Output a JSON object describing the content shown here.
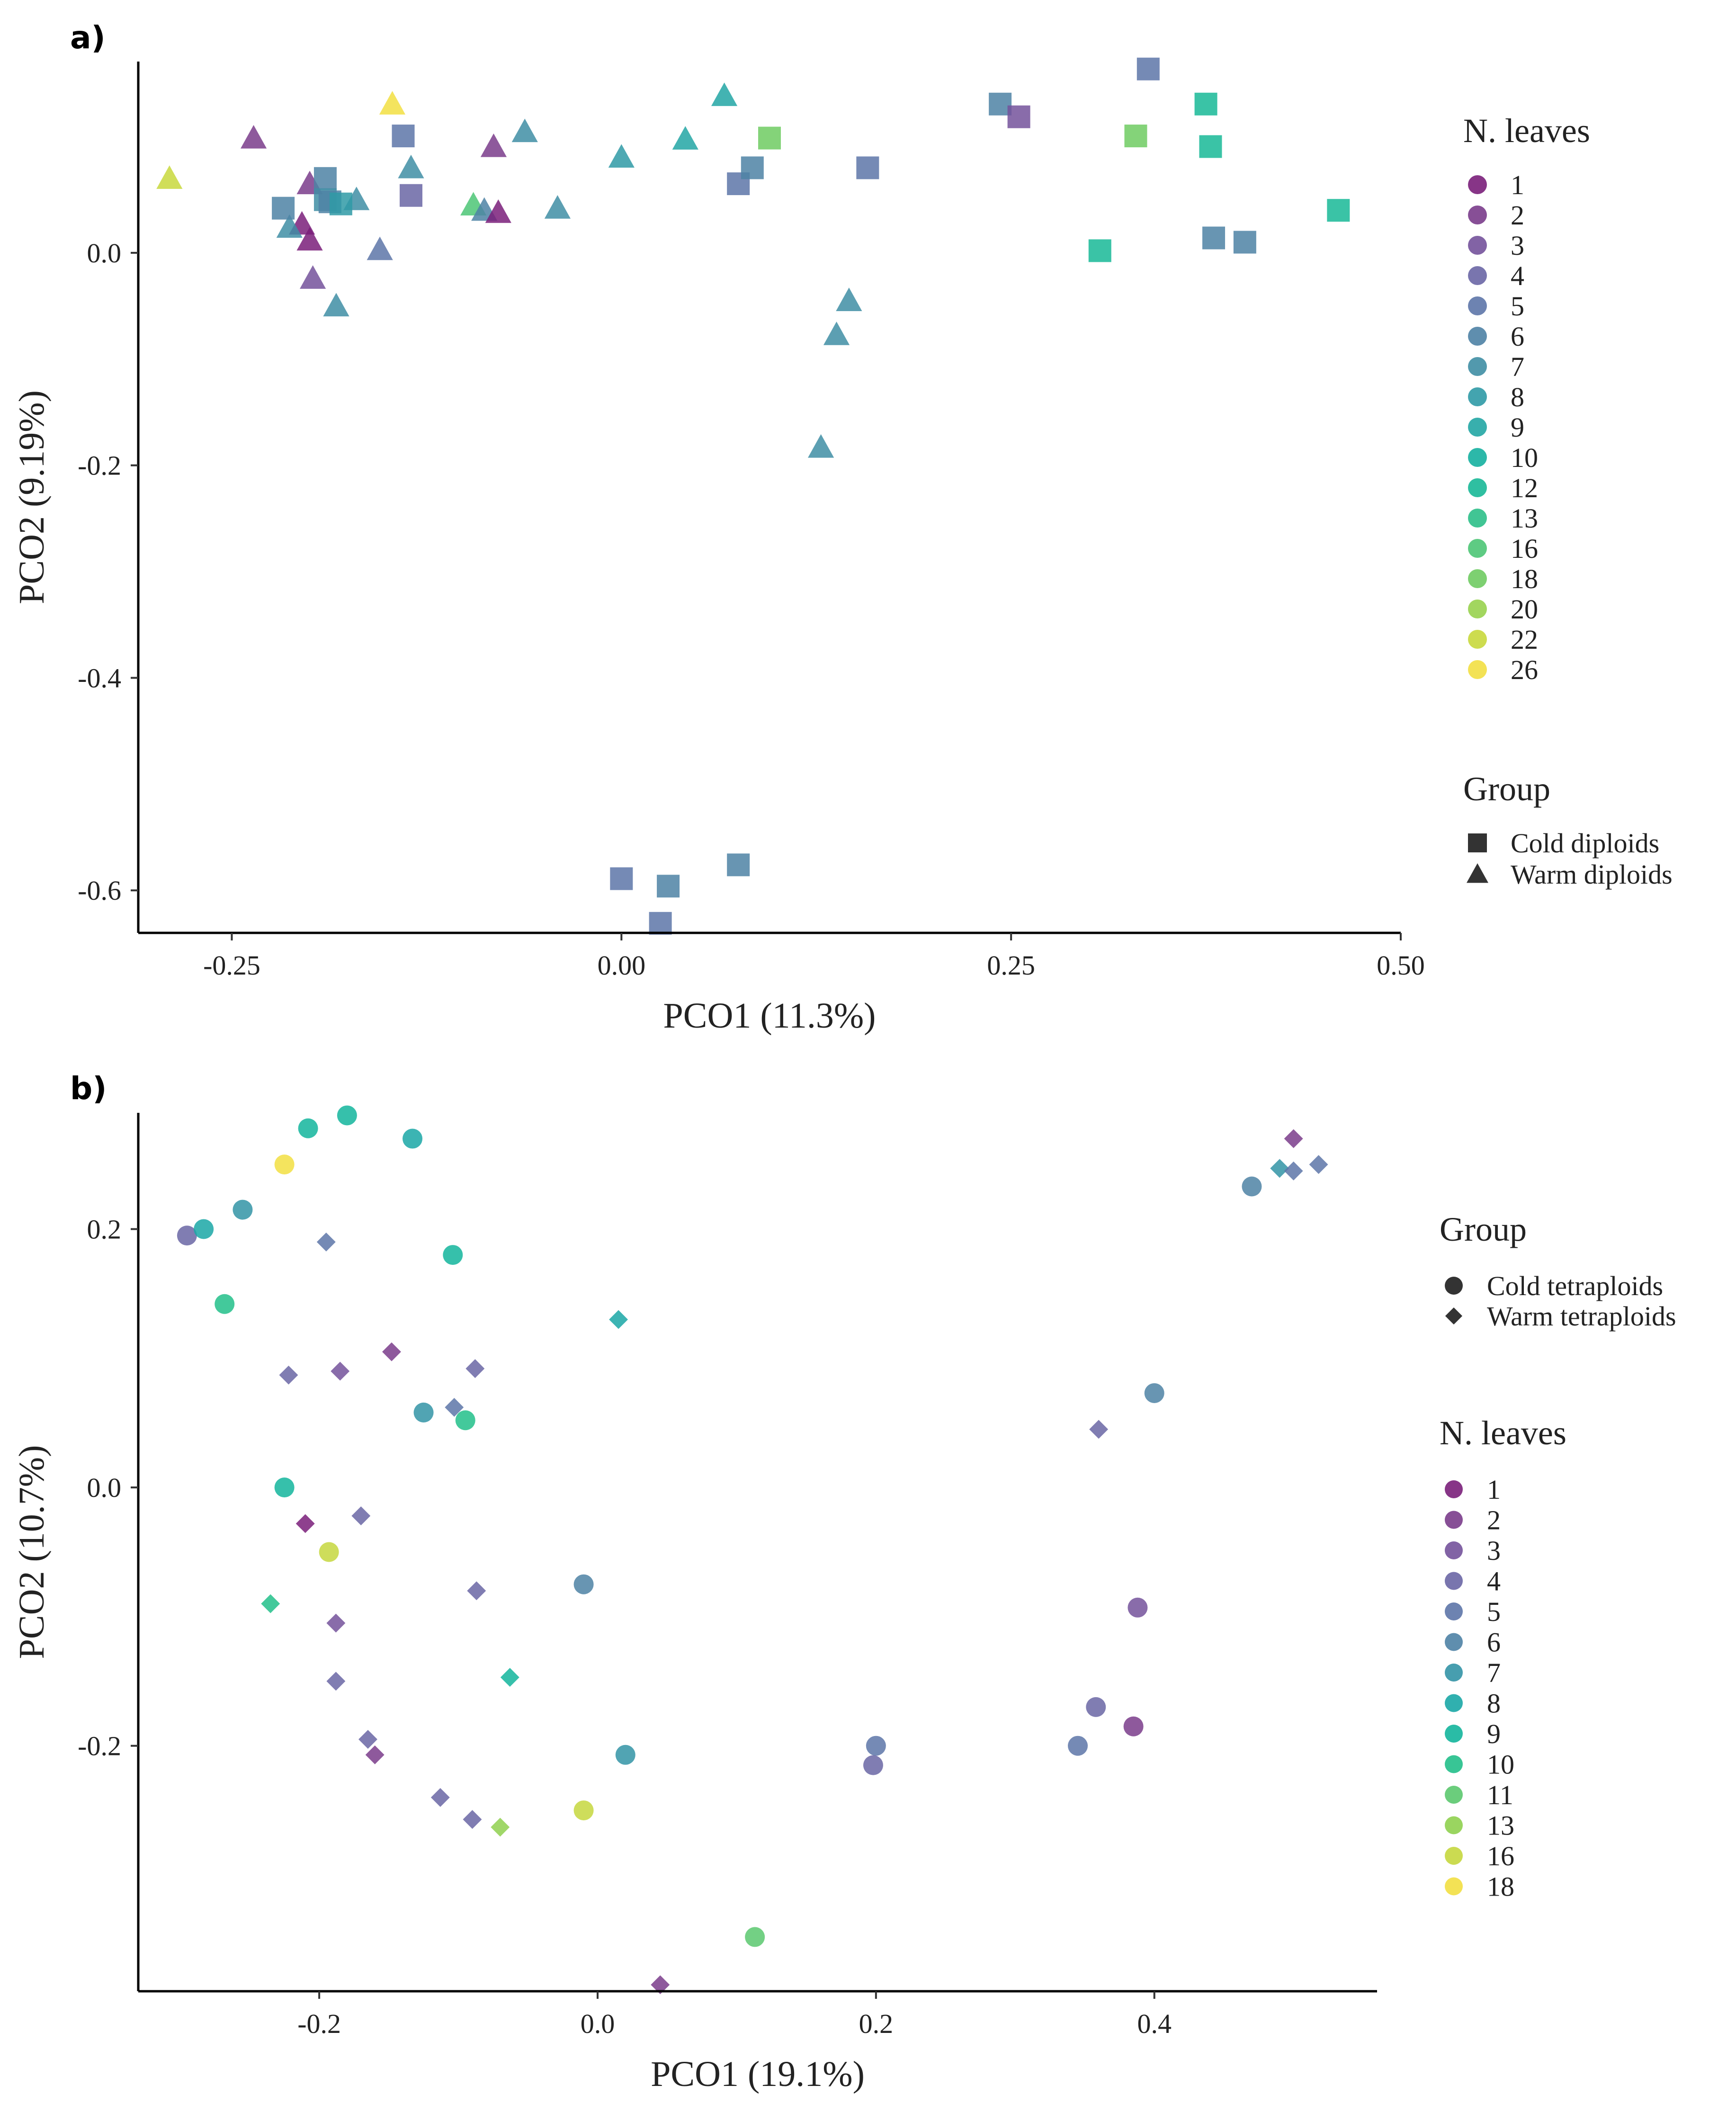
{
  "chart_data": [
    {
      "panel": "a)",
      "type": "scatter",
      "xlabel": "PCO1 (11.3%)",
      "ylabel": "PCO2 (9.19%)",
      "xlim": [
        -0.31,
        0.5
      ],
      "ylim": [
        -0.64,
        0.18
      ],
      "xticks": [
        -0.25,
        0.0,
        0.25,
        0.5
      ],
      "xtick_labels": [
        "-0.25",
        "0.00",
        "0.25",
        "0.50"
      ],
      "yticks": [
        0.0,
        -0.2,
        -0.4,
        -0.6
      ],
      "ytick_labels": [
        "0.0",
        "-0.2",
        "-0.4",
        "-0.6"
      ],
      "color_legend": {
        "title": "N. leaves",
        "levels": [
          "1",
          "2",
          "3",
          "4",
          "5",
          "6",
          "7",
          "8",
          "9",
          "10",
          "12",
          "13",
          "16",
          "18",
          "20",
          "22",
          "26"
        ],
        "colors": [
          "#7a1f7a",
          "#7a3c8b",
          "#74529b",
          "#6a66a5",
          "#5d75a8",
          "#4e82a5",
          "#3f8ea4",
          "#2f9aa6",
          "#22a6a4",
          "#15b0a0",
          "#18b897",
          "#2cbf88",
          "#4cc576",
          "#6fcb62",
          "#98d24e",
          "#c8d83c",
          "#f2df42"
        ]
      },
      "shape_legend": {
        "title": "Group",
        "labels": [
          "Cold diploids",
          "Warm diploids"
        ],
        "shapes": [
          "square",
          "triangle"
        ]
      },
      "grid": false,
      "legend_position": "right",
      "points": [
        {
          "x": -0.29,
          "y": 0.07,
          "level": "22",
          "group": "Warm diploids"
        },
        {
          "x": -0.236,
          "y": 0.108,
          "level": "2",
          "group": "Warm diploids"
        },
        {
          "x": -0.147,
          "y": 0.14,
          "level": "26",
          "group": "Warm diploids"
        },
        {
          "x": -0.2,
          "y": 0.065,
          "level": "2",
          "group": "Warm diploids"
        },
        {
          "x": -0.205,
          "y": 0.027,
          "level": "1",
          "group": "Warm diploids"
        },
        {
          "x": -0.2,
          "y": 0.012,
          "level": "1",
          "group": "Warm diploids"
        },
        {
          "x": -0.198,
          "y": -0.024,
          "level": "3",
          "group": "Warm diploids"
        },
        {
          "x": -0.183,
          "y": -0.05,
          "level": "7",
          "group": "Warm diploids"
        },
        {
          "x": -0.213,
          "y": 0.024,
          "level": "7",
          "group": "Warm diploids"
        },
        {
          "x": -0.17,
          "y": 0.05,
          "level": "7",
          "group": "Warm diploids"
        },
        {
          "x": -0.155,
          "y": 0.003,
          "level": "5",
          "group": "Warm diploids"
        },
        {
          "x": -0.135,
          "y": 0.08,
          "level": "7",
          "group": "Warm diploids"
        },
        {
          "x": -0.095,
          "y": 0.045,
          "level": "16",
          "group": "Warm diploids"
        },
        {
          "x": -0.088,
          "y": 0.04,
          "level": "6",
          "group": "Warm diploids"
        },
        {
          "x": -0.082,
          "y": 0.1,
          "level": "2",
          "group": "Warm diploids"
        },
        {
          "x": -0.079,
          "y": 0.038,
          "level": "1",
          "group": "Warm diploids"
        },
        {
          "x": -0.062,
          "y": 0.114,
          "level": "7",
          "group": "Warm diploids"
        },
        {
          "x": -0.041,
          "y": 0.042,
          "level": "7",
          "group": "Warm diploids"
        },
        {
          "x": 0.0,
          "y": 0.09,
          "level": "8",
          "group": "Warm diploids"
        },
        {
          "x": 0.041,
          "y": 0.107,
          "level": "9",
          "group": "Warm diploids"
        },
        {
          "x": 0.066,
          "y": 0.148,
          "level": "9",
          "group": "Warm diploids"
        },
        {
          "x": 0.146,
          "y": -0.045,
          "level": "7",
          "group": "Warm diploids"
        },
        {
          "x": 0.138,
          "y": -0.077,
          "level": "7",
          "group": "Warm diploids"
        },
        {
          "x": 0.128,
          "y": -0.183,
          "level": "7",
          "group": "Warm diploids"
        },
        {
          "x": -0.217,
          "y": 0.042,
          "level": "6",
          "group": "Cold diploids"
        },
        {
          "x": -0.19,
          "y": 0.07,
          "level": "6",
          "group": "Cold diploids"
        },
        {
          "x": -0.19,
          "y": 0.05,
          "level": "7",
          "group": "Cold diploids"
        },
        {
          "x": -0.187,
          "y": 0.048,
          "level": "6",
          "group": "Cold diploids"
        },
        {
          "x": -0.18,
          "y": 0.046,
          "level": "8",
          "group": "Cold diploids"
        },
        {
          "x": -0.14,
          "y": 0.11,
          "level": "5",
          "group": "Cold diploids"
        },
        {
          "x": -0.135,
          "y": 0.054,
          "level": "4",
          "group": "Cold diploids"
        },
        {
          "x": 0.075,
          "y": 0.065,
          "level": "5",
          "group": "Cold diploids"
        },
        {
          "x": 0.084,
          "y": 0.08,
          "level": "6",
          "group": "Cold diploids"
        },
        {
          "x": 0.095,
          "y": 0.108,
          "level": "18",
          "group": "Cold diploids"
        },
        {
          "x": 0.158,
          "y": 0.08,
          "level": "5",
          "group": "Cold diploids"
        },
        {
          "x": 0.243,
          "y": 0.14,
          "level": "6",
          "group": "Cold diploids"
        },
        {
          "x": 0.255,
          "y": 0.128,
          "level": "3",
          "group": "Cold diploids"
        },
        {
          "x": 0.338,
          "y": 0.173,
          "level": "5",
          "group": "Cold diploids"
        },
        {
          "x": 0.33,
          "y": 0.11,
          "level": "18",
          "group": "Cold diploids"
        },
        {
          "x": 0.375,
          "y": 0.14,
          "level": "12",
          "group": "Cold diploids"
        },
        {
          "x": 0.378,
          "y": 0.1,
          "level": "12",
          "group": "Cold diploids"
        },
        {
          "x": 0.46,
          "y": 0.04,
          "level": "12",
          "group": "Cold diploids"
        },
        {
          "x": 0.307,
          "y": 0.002,
          "level": "12",
          "group": "Cold diploids"
        },
        {
          "x": 0.38,
          "y": 0.014,
          "level": "6",
          "group": "Cold diploids"
        },
        {
          "x": 0.4,
          "y": 0.01,
          "level": "6",
          "group": "Cold diploids"
        },
        {
          "x": 0.0,
          "y": -0.589,
          "level": "5",
          "group": "Cold diploids"
        },
        {
          "x": 0.03,
          "y": -0.596,
          "level": "6",
          "group": "Cold diploids"
        },
        {
          "x": 0.075,
          "y": -0.576,
          "level": "6",
          "group": "Cold diploids"
        },
        {
          "x": 0.025,
          "y": -0.631,
          "level": "5",
          "group": "Cold diploids"
        }
      ]
    },
    {
      "panel": "b)",
      "type": "scatter",
      "xlabel": "PCO1 (19.1%)",
      "ylabel": "PCO2 (10.7%)",
      "xlim": [
        -0.33,
        0.56
      ],
      "ylim": [
        -0.39,
        0.29
      ],
      "xticks": [
        -0.2,
        0.0,
        0.2,
        0.4
      ],
      "xtick_labels": [
        "-0.2",
        "0.0",
        "0.2",
        "0.4"
      ],
      "yticks": [
        0.2,
        0.0,
        -0.2
      ],
      "ytick_labels": [
        "0.2",
        "0.0",
        "-0.2"
      ],
      "color_legend": {
        "title": "N. leaves",
        "levels": [
          "1",
          "2",
          "3",
          "4",
          "5",
          "6",
          "7",
          "8",
          "9",
          "10",
          "11",
          "13",
          "16",
          "18"
        ],
        "colors": [
          "#7a1f7a",
          "#7a3c8b",
          "#74529b",
          "#6a66a5",
          "#5d75a8",
          "#4e82a5",
          "#3394a6",
          "#1aa7a6",
          "#13b59c",
          "#22bf8a",
          "#5bc86e",
          "#8fd04f",
          "#c5d73e",
          "#f2df42"
        ]
      },
      "shape_legend": {
        "title": "Group",
        "labels": [
          "Cold tetraploids",
          "Warm tetraploids"
        ],
        "shapes": [
          "circle",
          "diamond"
        ]
      },
      "grid": false,
      "legend_position": "right",
      "points": [
        {
          "x": -0.295,
          "y": 0.195,
          "level": "4",
          "group": "Cold tetraploids"
        },
        {
          "x": -0.283,
          "y": 0.2,
          "level": "8",
          "group": "Cold tetraploids"
        },
        {
          "x": -0.255,
          "y": 0.215,
          "level": "7",
          "group": "Cold tetraploids"
        },
        {
          "x": -0.268,
          "y": 0.142,
          "level": "10",
          "group": "Cold tetraploids"
        },
        {
          "x": -0.208,
          "y": 0.278,
          "level": "9",
          "group": "Cold tetraploids"
        },
        {
          "x": -0.18,
          "y": 0.288,
          "level": "9",
          "group": "Cold tetraploids"
        },
        {
          "x": -0.133,
          "y": 0.27,
          "level": "8",
          "group": "Cold tetraploids"
        },
        {
          "x": -0.225,
          "y": 0.25,
          "level": "18",
          "group": "Cold tetraploids"
        },
        {
          "x": -0.104,
          "y": 0.18,
          "level": "9",
          "group": "Cold tetraploids"
        },
        {
          "x": -0.125,
          "y": 0.058,
          "level": "7",
          "group": "Cold tetraploids"
        },
        {
          "x": -0.095,
          "y": 0.052,
          "level": "10",
          "group": "Cold tetraploids"
        },
        {
          "x": -0.225,
          "y": 0.0,
          "level": "9",
          "group": "Cold tetraploids"
        },
        {
          "x": -0.193,
          "y": -0.05,
          "level": "16",
          "group": "Cold tetraploids"
        },
        {
          "x": -0.01,
          "y": -0.075,
          "level": "6",
          "group": "Cold tetraploids"
        },
        {
          "x": 0.02,
          "y": -0.207,
          "level": "7",
          "group": "Cold tetraploids"
        },
        {
          "x": -0.01,
          "y": -0.25,
          "level": "16",
          "group": "Cold tetraploids"
        },
        {
          "x": 0.2,
          "y": -0.2,
          "level": "5",
          "group": "Cold tetraploids"
        },
        {
          "x": 0.198,
          "y": -0.215,
          "level": "4",
          "group": "Cold tetraploids"
        },
        {
          "x": 0.113,
          "y": -0.348,
          "level": "11",
          "group": "Cold tetraploids"
        },
        {
          "x": 0.345,
          "y": -0.2,
          "level": "5",
          "group": "Cold tetraploids"
        },
        {
          "x": 0.358,
          "y": -0.17,
          "level": "4",
          "group": "Cold tetraploids"
        },
        {
          "x": 0.385,
          "y": -0.185,
          "level": "2",
          "group": "Cold tetraploids"
        },
        {
          "x": 0.388,
          "y": -0.093,
          "level": "3",
          "group": "Cold tetraploids"
        },
        {
          "x": 0.4,
          "y": 0.073,
          "level": "6",
          "group": "Cold tetraploids"
        },
        {
          "x": 0.47,
          "y": 0.233,
          "level": "6",
          "group": "Cold tetraploids"
        },
        {
          "x": -0.195,
          "y": 0.19,
          "level": "5",
          "group": "Warm tetraploids"
        },
        {
          "x": -0.222,
          "y": 0.087,
          "level": "4",
          "group": "Warm tetraploids"
        },
        {
          "x": -0.185,
          "y": 0.09,
          "level": "3",
          "group": "Warm tetraploids"
        },
        {
          "x": -0.148,
          "y": 0.105,
          "level": "2",
          "group": "Warm tetraploids"
        },
        {
          "x": -0.088,
          "y": 0.092,
          "level": "4",
          "group": "Warm tetraploids"
        },
        {
          "x": -0.103,
          "y": 0.062,
          "level": "5",
          "group": "Warm tetraploids"
        },
        {
          "x": 0.015,
          "y": 0.13,
          "level": "8",
          "group": "Warm tetraploids"
        },
        {
          "x": -0.21,
          "y": -0.028,
          "level": "1",
          "group": "Warm tetraploids"
        },
        {
          "x": -0.17,
          "y": -0.022,
          "level": "4",
          "group": "Warm tetraploids"
        },
        {
          "x": -0.235,
          "y": -0.09,
          "level": "10",
          "group": "Warm tetraploids"
        },
        {
          "x": -0.087,
          "y": -0.08,
          "level": "4",
          "group": "Warm tetraploids"
        },
        {
          "x": -0.188,
          "y": -0.105,
          "level": "3",
          "group": "Warm tetraploids"
        },
        {
          "x": -0.188,
          "y": -0.15,
          "level": "4",
          "group": "Warm tetraploids"
        },
        {
          "x": -0.063,
          "y": -0.147,
          "level": "9",
          "group": "Warm tetraploids"
        },
        {
          "x": -0.165,
          "y": -0.195,
          "level": "4",
          "group": "Warm tetraploids"
        },
        {
          "x": -0.16,
          "y": -0.207,
          "level": "2",
          "group": "Warm tetraploids"
        },
        {
          "x": -0.113,
          "y": -0.24,
          "level": "4",
          "group": "Warm tetraploids"
        },
        {
          "x": -0.09,
          "y": -0.257,
          "level": "4",
          "group": "Warm tetraploids"
        },
        {
          "x": -0.07,
          "y": -0.263,
          "level": "13",
          "group": "Warm tetraploids"
        },
        {
          "x": 0.045,
          "y": -0.385,
          "level": "2",
          "group": "Warm tetraploids"
        },
        {
          "x": 0.36,
          "y": 0.045,
          "level": "4",
          "group": "Warm tetraploids"
        },
        {
          "x": 0.49,
          "y": 0.247,
          "level": "7",
          "group": "Warm tetraploids"
        },
        {
          "x": 0.5,
          "y": 0.245,
          "level": "5",
          "group": "Warm tetraploids"
        },
        {
          "x": 0.5,
          "y": 0.27,
          "level": "2",
          "group": "Warm tetraploids"
        },
        {
          "x": 0.518,
          "y": 0.25,
          "level": "5",
          "group": "Warm tetraploids"
        }
      ]
    }
  ]
}
